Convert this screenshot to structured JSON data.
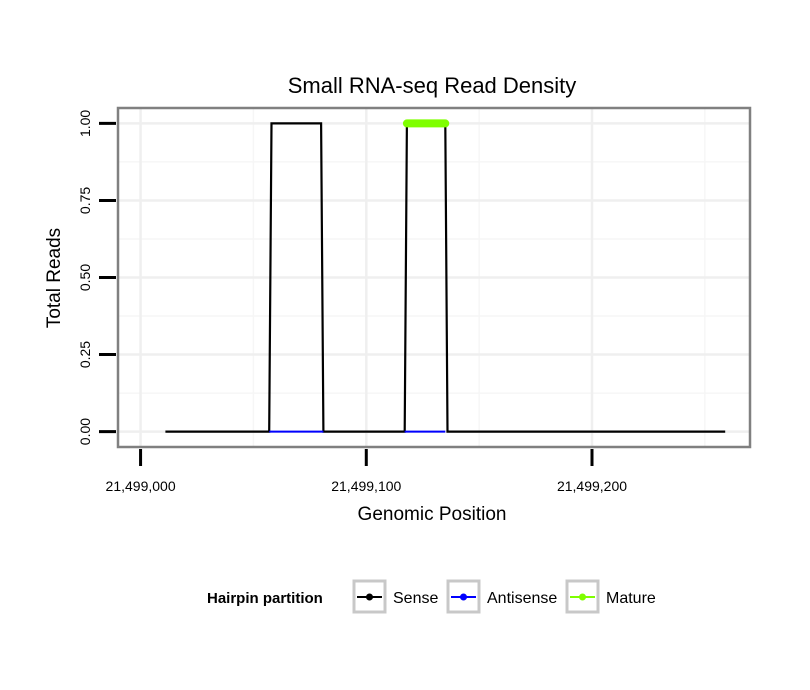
{
  "chart_data": {
    "type": "line",
    "title": "Small RNA-seq Read Density",
    "xlabel": "Genomic Position",
    "ylabel": "Total Reads",
    "xlim": [
      21498990,
      21499270
    ],
    "ylim": [
      -0.05,
      1.05
    ],
    "x_ticks": [
      21499000,
      21499100,
      21499200
    ],
    "x_tick_labels": [
      "21,499,000",
      "21,499,100",
      "21,499,200"
    ],
    "y_ticks": [
      0,
      0.25,
      0.5,
      0.75,
      1.0
    ],
    "y_tick_labels": [
      "0.00",
      "0.25",
      "0.50",
      "0.75",
      "1.00"
    ],
    "grid": true,
    "legend": {
      "title": "Hairpin partition",
      "position": "bottom",
      "entries": [
        "Sense",
        "Antisense",
        "Mature"
      ]
    },
    "series": [
      {
        "name": "Sense",
        "color": "#000000",
        "x": [
          21499011,
          21499057,
          21499058,
          21499080,
          21499081,
          21499117,
          21499118,
          21499135,
          21499136,
          21499259
        ],
        "y": [
          0,
          0,
          1,
          1,
          0,
          0,
          1,
          1,
          0,
          0
        ]
      },
      {
        "name": "Antisense",
        "color": "#0000ff",
        "segments": [
          {
            "x": [
              21499057,
              21499081
            ],
            "y": [
              0,
              0
            ]
          },
          {
            "x": [
              21499117,
              21499135
            ],
            "y": [
              0,
              0
            ]
          }
        ]
      },
      {
        "name": "Mature",
        "color": "#7fff00",
        "x": [
          21499118,
          21499135
        ],
        "y": [
          1,
          1
        ]
      }
    ]
  }
}
